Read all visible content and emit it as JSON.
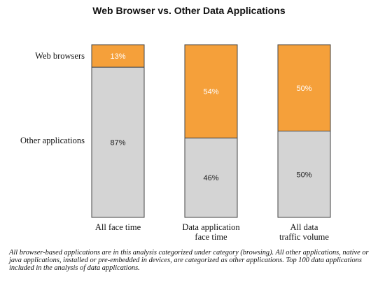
{
  "chart_data": {
    "type": "bar",
    "stacked": true,
    "percent": true,
    "title": "Web Browser vs. Other Data Applications",
    "categories": [
      "All face time",
      "Data application face time",
      "All data traffic volume"
    ],
    "category_lines": [
      [
        "All face time"
      ],
      [
        "Data application",
        "face time"
      ],
      [
        "All data",
        "traffic volume"
      ]
    ],
    "series": [
      {
        "name": "Other applications",
        "values": [
          87,
          46,
          50
        ],
        "labels": [
          "87%",
          "46%",
          "50%"
        ],
        "color": "#d4d4d4"
      },
      {
        "name": "Web browsers",
        "values": [
          13,
          54,
          50
        ],
        "labels": [
          "13%",
          "54%",
          "50%"
        ],
        "color": "#f5a03a"
      }
    ],
    "ylim": [
      0,
      100
    ],
    "grid": false,
    "legend": "left"
  },
  "footnote": "All browser-based applications are in this analysis categorized under category (browsing). All other applications, native or java applications, installed or pre-embedded in devices, are categorized as other applications. Top 100 data applications included in the analysis of data applications."
}
